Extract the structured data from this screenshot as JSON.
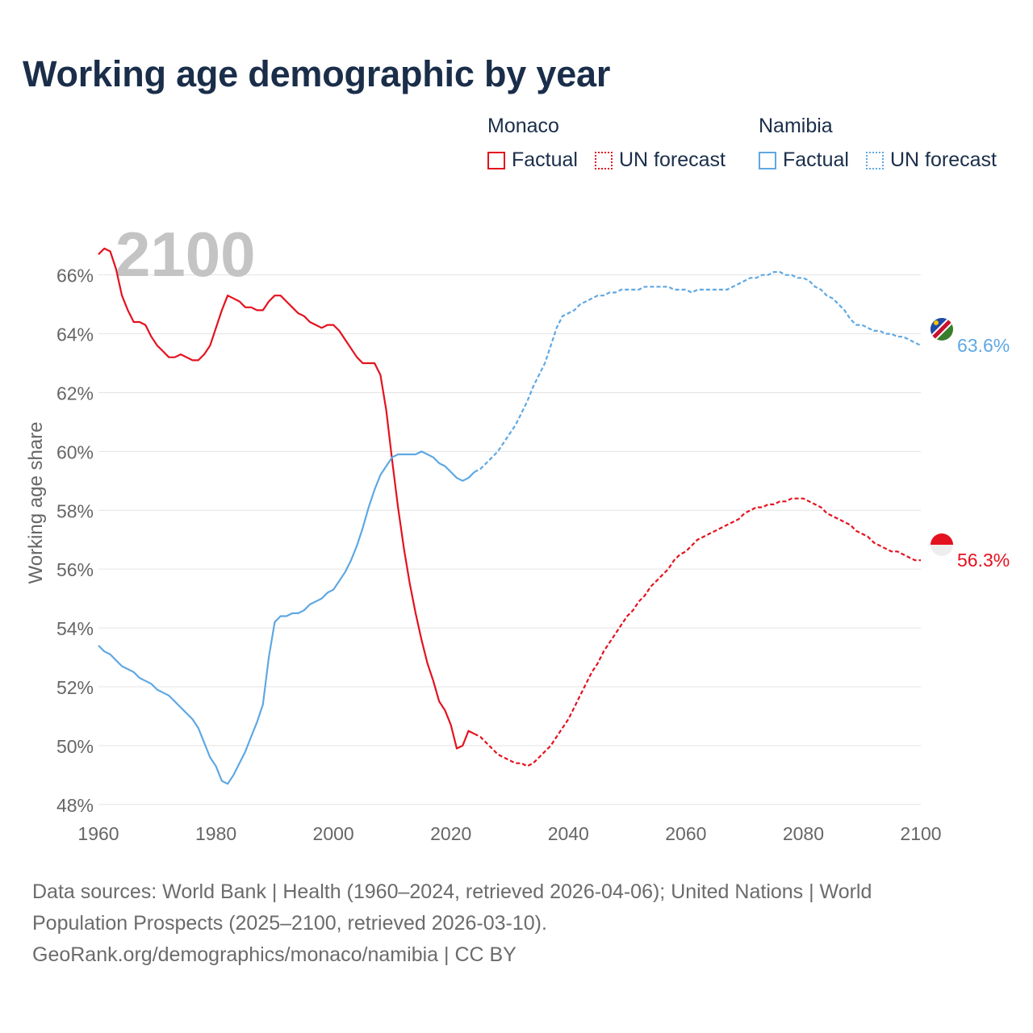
{
  "title": "Working age demographic by year",
  "legend": {
    "groups": [
      {
        "country": "Monaco",
        "factual_label": "Factual",
        "forecast_label": "UN forecast",
        "color": "#e4121f"
      },
      {
        "country": "Namibia",
        "factual_label": "Factual",
        "forecast_label": "UN forecast",
        "color": "#5fa8e3"
      }
    ]
  },
  "source": {
    "line1": "Data sources: World Bank | Health (1960–2024, retrieved 2026-04-06); United Nations | World",
    "line2": "Population Prospects (2025–2100, retrieved 2026-03-10).",
    "line3": "GeoRank.org/demographics/monaco/namibia | CC BY"
  },
  "chart_data": {
    "type": "line",
    "title": "Working age demographic by year",
    "xlabel": "",
    "ylabel": "Working age share",
    "xlim": [
      1960,
      2100
    ],
    "ylim": [
      47.5,
      67.5
    ],
    "x_ticks": [
      1960,
      1980,
      2000,
      2020,
      2040,
      2060,
      2080,
      2100
    ],
    "y_ticks": [
      48,
      50,
      52,
      54,
      56,
      58,
      60,
      62,
      64,
      66
    ],
    "grid": true,
    "watermark_year": "2100",
    "series": [
      {
        "name": "Monaco",
        "color": "#e4121f",
        "end_label": "56.3%",
        "factual": [
          [
            1960,
            66.7
          ],
          [
            1961,
            66.9
          ],
          [
            1962,
            66.8
          ],
          [
            1963,
            66.2
          ],
          [
            1964,
            65.3
          ],
          [
            1965,
            64.8
          ],
          [
            1966,
            64.4
          ],
          [
            1967,
            64.4
          ],
          [
            1968,
            64.3
          ],
          [
            1969,
            63.9
          ],
          [
            1970,
            63.6
          ],
          [
            1971,
            63.4
          ],
          [
            1972,
            63.2
          ],
          [
            1973,
            63.2
          ],
          [
            1974,
            63.3
          ],
          [
            1975,
            63.2
          ],
          [
            1976,
            63.1
          ],
          [
            1977,
            63.1
          ],
          [
            1978,
            63.3
          ],
          [
            1979,
            63.6
          ],
          [
            1980,
            64.2
          ],
          [
            1981,
            64.8
          ],
          [
            1982,
            65.3
          ],
          [
            1983,
            65.2
          ],
          [
            1984,
            65.1
          ],
          [
            1985,
            64.9
          ],
          [
            1986,
            64.9
          ],
          [
            1987,
            64.8
          ],
          [
            1988,
            64.8
          ],
          [
            1989,
            65.1
          ],
          [
            1990,
            65.3
          ],
          [
            1991,
            65.3
          ],
          [
            1992,
            65.1
          ],
          [
            1993,
            64.9
          ],
          [
            1994,
            64.7
          ],
          [
            1995,
            64.6
          ],
          [
            1996,
            64.4
          ],
          [
            1997,
            64.3
          ],
          [
            1998,
            64.2
          ],
          [
            1999,
            64.3
          ],
          [
            2000,
            64.3
          ],
          [
            2001,
            64.1
          ],
          [
            2002,
            63.8
          ],
          [
            2003,
            63.5
          ],
          [
            2004,
            63.2
          ],
          [
            2005,
            63.0
          ],
          [
            2006,
            63.0
          ],
          [
            2007,
            63.0
          ],
          [
            2008,
            62.6
          ],
          [
            2009,
            61.4
          ],
          [
            2010,
            59.7
          ],
          [
            2011,
            58.1
          ],
          [
            2012,
            56.7
          ],
          [
            2013,
            55.5
          ],
          [
            2014,
            54.5
          ],
          [
            2015,
            53.6
          ],
          [
            2016,
            52.8
          ],
          [
            2017,
            52.2
          ],
          [
            2018,
            51.5
          ],
          [
            2019,
            51.2
          ],
          [
            2020,
            50.7
          ],
          [
            2021,
            49.9
          ],
          [
            2022,
            50.0
          ],
          [
            2023,
            50.5
          ],
          [
            2024,
            50.4
          ]
        ],
        "forecast": [
          [
            2024,
            50.4
          ],
          [
            2025,
            50.3
          ],
          [
            2026,
            50.1
          ],
          [
            2027,
            49.9
          ],
          [
            2028,
            49.7
          ],
          [
            2029,
            49.6
          ],
          [
            2030,
            49.5
          ],
          [
            2031,
            49.4
          ],
          [
            2032,
            49.4
          ],
          [
            2033,
            49.3
          ],
          [
            2034,
            49.4
          ],
          [
            2035,
            49.6
          ],
          [
            2036,
            49.8
          ],
          [
            2037,
            50.0
          ],
          [
            2038,
            50.3
          ],
          [
            2039,
            50.6
          ],
          [
            2040,
            50.9
          ],
          [
            2041,
            51.3
          ],
          [
            2042,
            51.7
          ],
          [
            2043,
            52.1
          ],
          [
            2044,
            52.5
          ],
          [
            2045,
            52.8
          ],
          [
            2046,
            53.2
          ],
          [
            2047,
            53.5
          ],
          [
            2048,
            53.8
          ],
          [
            2049,
            54.1
          ],
          [
            2050,
            54.4
          ],
          [
            2051,
            54.6
          ],
          [
            2052,
            54.9
          ],
          [
            2053,
            55.1
          ],
          [
            2054,
            55.4
          ],
          [
            2055,
            55.6
          ],
          [
            2056,
            55.8
          ],
          [
            2057,
            56.0
          ],
          [
            2058,
            56.3
          ],
          [
            2059,
            56.5
          ],
          [
            2060,
            56.6
          ],
          [
            2061,
            56.8
          ],
          [
            2062,
            57.0
          ],
          [
            2063,
            57.1
          ],
          [
            2064,
            57.2
          ],
          [
            2065,
            57.3
          ],
          [
            2066,
            57.4
          ],
          [
            2067,
            57.5
          ],
          [
            2068,
            57.6
          ],
          [
            2069,
            57.7
          ],
          [
            2070,
            57.9
          ],
          [
            2071,
            58.0
          ],
          [
            2072,
            58.1
          ],
          [
            2073,
            58.1
          ],
          [
            2074,
            58.2
          ],
          [
            2075,
            58.2
          ],
          [
            2076,
            58.3
          ],
          [
            2077,
            58.3
          ],
          [
            2078,
            58.4
          ],
          [
            2079,
            58.4
          ],
          [
            2080,
            58.4
          ],
          [
            2081,
            58.3
          ],
          [
            2082,
            58.2
          ],
          [
            2083,
            58.1
          ],
          [
            2084,
            57.9
          ],
          [
            2085,
            57.8
          ],
          [
            2086,
            57.7
          ],
          [
            2087,
            57.6
          ],
          [
            2088,
            57.5
          ],
          [
            2089,
            57.3
          ],
          [
            2090,
            57.2
          ],
          [
            2091,
            57.1
          ],
          [
            2092,
            56.9
          ],
          [
            2093,
            56.8
          ],
          [
            2094,
            56.7
          ],
          [
            2095,
            56.6
          ],
          [
            2096,
            56.6
          ],
          [
            2097,
            56.5
          ],
          [
            2098,
            56.4
          ],
          [
            2099,
            56.3
          ],
          [
            2100,
            56.3
          ]
        ]
      },
      {
        "name": "Namibia",
        "color": "#5fa8e3",
        "end_label": "63.6%",
        "factual": [
          [
            1960,
            53.4
          ],
          [
            1961,
            53.2
          ],
          [
            1962,
            53.1
          ],
          [
            1963,
            52.9
          ],
          [
            1964,
            52.7
          ],
          [
            1965,
            52.6
          ],
          [
            1966,
            52.5
          ],
          [
            1967,
            52.3
          ],
          [
            1968,
            52.2
          ],
          [
            1969,
            52.1
          ],
          [
            1970,
            51.9
          ],
          [
            1971,
            51.8
          ],
          [
            1972,
            51.7
          ],
          [
            1973,
            51.5
          ],
          [
            1974,
            51.3
          ],
          [
            1975,
            51.1
          ],
          [
            1976,
            50.9
          ],
          [
            1977,
            50.6
          ],
          [
            1978,
            50.1
          ],
          [
            1979,
            49.6
          ],
          [
            1980,
            49.3
          ],
          [
            1981,
            48.8
          ],
          [
            1982,
            48.7
          ],
          [
            1983,
            49.0
          ],
          [
            1984,
            49.4
          ],
          [
            1985,
            49.8
          ],
          [
            1986,
            50.3
          ],
          [
            1987,
            50.8
          ],
          [
            1988,
            51.4
          ],
          [
            1989,
            53.0
          ],
          [
            1990,
            54.2
          ],
          [
            1991,
            54.4
          ],
          [
            1992,
            54.4
          ],
          [
            1993,
            54.5
          ],
          [
            1994,
            54.5
          ],
          [
            1995,
            54.6
          ],
          [
            1996,
            54.8
          ],
          [
            1997,
            54.9
          ],
          [
            1998,
            55.0
          ],
          [
            1999,
            55.2
          ],
          [
            2000,
            55.3
          ],
          [
            2001,
            55.6
          ],
          [
            2002,
            55.9
          ],
          [
            2003,
            56.3
          ],
          [
            2004,
            56.8
          ],
          [
            2005,
            57.4
          ],
          [
            2006,
            58.1
          ],
          [
            2007,
            58.7
          ],
          [
            2008,
            59.2
          ],
          [
            2009,
            59.5
          ],
          [
            2010,
            59.8
          ],
          [
            2011,
            59.9
          ],
          [
            2012,
            59.9
          ],
          [
            2013,
            59.9
          ],
          [
            2014,
            59.9
          ],
          [
            2015,
            60.0
          ],
          [
            2016,
            59.9
          ],
          [
            2017,
            59.8
          ],
          [
            2018,
            59.6
          ],
          [
            2019,
            59.5
          ],
          [
            2020,
            59.3
          ],
          [
            2021,
            59.1
          ],
          [
            2022,
            59.0
          ],
          [
            2023,
            59.1
          ],
          [
            2024,
            59.3
          ]
        ],
        "forecast": [
          [
            2024,
            59.3
          ],
          [
            2025,
            59.4
          ],
          [
            2026,
            59.6
          ],
          [
            2027,
            59.8
          ],
          [
            2028,
            60.0
          ],
          [
            2029,
            60.3
          ],
          [
            2030,
            60.6
          ],
          [
            2031,
            60.9
          ],
          [
            2032,
            61.3
          ],
          [
            2033,
            61.7
          ],
          [
            2034,
            62.2
          ],
          [
            2035,
            62.6
          ],
          [
            2036,
            63.0
          ],
          [
            2037,
            63.6
          ],
          [
            2038,
            64.2
          ],
          [
            2039,
            64.6
          ],
          [
            2040,
            64.7
          ],
          [
            2041,
            64.8
          ],
          [
            2042,
            65.0
          ],
          [
            2043,
            65.1
          ],
          [
            2044,
            65.2
          ],
          [
            2045,
            65.3
          ],
          [
            2046,
            65.3
          ],
          [
            2047,
            65.4
          ],
          [
            2048,
            65.4
          ],
          [
            2049,
            65.5
          ],
          [
            2050,
            65.5
          ],
          [
            2051,
            65.5
          ],
          [
            2052,
            65.5
          ],
          [
            2053,
            65.6
          ],
          [
            2054,
            65.6
          ],
          [
            2055,
            65.6
          ],
          [
            2056,
            65.6
          ],
          [
            2057,
            65.6
          ],
          [
            2058,
            65.5
          ],
          [
            2059,
            65.5
          ],
          [
            2060,
            65.5
          ],
          [
            2061,
            65.4
          ],
          [
            2062,
            65.5
          ],
          [
            2063,
            65.5
          ],
          [
            2064,
            65.5
          ],
          [
            2065,
            65.5
          ],
          [
            2066,
            65.5
          ],
          [
            2067,
            65.5
          ],
          [
            2068,
            65.6
          ],
          [
            2069,
            65.7
          ],
          [
            2070,
            65.8
          ],
          [
            2071,
            65.9
          ],
          [
            2072,
            65.9
          ],
          [
            2073,
            66.0
          ],
          [
            2074,
            66.0
          ],
          [
            2075,
            66.1
          ],
          [
            2076,
            66.1
          ],
          [
            2077,
            66.0
          ],
          [
            2078,
            66.0
          ],
          [
            2079,
            65.9
          ],
          [
            2080,
            65.9
          ],
          [
            2081,
            65.8
          ],
          [
            2082,
            65.6
          ],
          [
            2083,
            65.5
          ],
          [
            2084,
            65.3
          ],
          [
            2085,
            65.2
          ],
          [
            2086,
            65.0
          ],
          [
            2087,
            64.8
          ],
          [
            2088,
            64.5
          ],
          [
            2089,
            64.3
          ],
          [
            2090,
            64.3
          ],
          [
            2091,
            64.2
          ],
          [
            2092,
            64.1
          ],
          [
            2093,
            64.1
          ],
          [
            2094,
            64.0
          ],
          [
            2095,
            64.0
          ],
          [
            2096,
            63.9
          ],
          [
            2097,
            63.9
          ],
          [
            2098,
            63.8
          ],
          [
            2099,
            63.7
          ],
          [
            2100,
            63.6
          ]
        ]
      }
    ]
  }
}
